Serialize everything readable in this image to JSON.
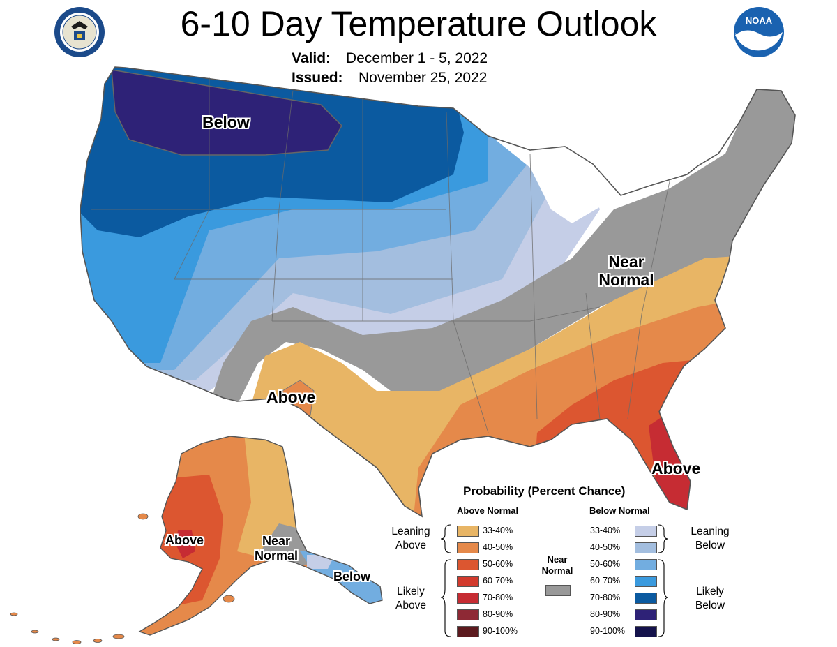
{
  "header": {
    "title": "6-10 Day Temperature Outlook",
    "valid_label": "Valid:",
    "valid_value": "December 1 - 5, 2022",
    "issued_label": "Issued:",
    "issued_value": "November 25, 2022",
    "left_logo_icon": "doc-seal-icon",
    "right_logo_icon": "noaa-logo-icon",
    "noaa_text": "NOAA"
  },
  "map_labels": {
    "conus_below": "Below",
    "conus_above_sw": "Above",
    "conus_near_normal_line1": "Near",
    "conus_near_normal_line2": "Normal",
    "conus_above_se": "Above",
    "ak_above": "Above",
    "ak_near_line1": "Near",
    "ak_near_line2": "Normal",
    "ak_below": "Below"
  },
  "legend": {
    "title": "Probability (Percent Chance)",
    "above_header": "Above Normal",
    "below_header": "Below Normal",
    "above_rows": [
      {
        "range": "33-40%",
        "color": "#e8b565"
      },
      {
        "range": "40-50%",
        "color": "#e5894a"
      },
      {
        "range": "50-60%",
        "color": "#dc5630"
      },
      {
        "range": "60-70%",
        "color": "#d23a2d"
      },
      {
        "range": "70-80%",
        "color": "#c62c33"
      },
      {
        "range": "80-90%",
        "color": "#8e2935"
      },
      {
        "range": "90-100%",
        "color": "#5c1a1e"
      }
    ],
    "below_rows": [
      {
        "range": "33-40%",
        "color": "#c5cee7"
      },
      {
        "range": "40-50%",
        "color": "#a3bedf"
      },
      {
        "range": "50-60%",
        "color": "#72ade0"
      },
      {
        "range": "60-70%",
        "color": "#3a9ade"
      },
      {
        "range": "70-80%",
        "color": "#0b5aa0"
      },
      {
        "range": "80-90%",
        "color": "#2e2277"
      },
      {
        "range": "90-100%",
        "color": "#14124b"
      }
    ],
    "leaning_above_line1": "Leaning",
    "leaning_above_line2": "Above",
    "likely_above_line1": "Likely",
    "likely_above_line2": "Above",
    "leaning_below_line1": "Leaning",
    "leaning_below_line2": "Below",
    "likely_below_line1": "Likely",
    "likely_below_line2": "Below",
    "near_normal_line1": "Near",
    "near_normal_line2": "Normal",
    "near_normal_color": "#999999"
  }
}
